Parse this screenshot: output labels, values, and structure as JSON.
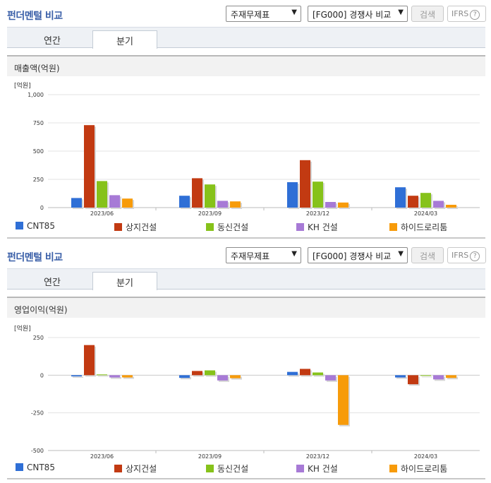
{
  "panels": [
    {
      "title": "펀더멘털 비교",
      "select_statement": "주재무제표",
      "select_peer": "[FG000] 경쟁사 비교",
      "search_label": "검색",
      "ifrs_label": "IFRS",
      "tabs": [
        "연간",
        "분기"
      ],
      "active_tab": 1,
      "metric_title": "매출액(억원)",
      "unit_label": "[억원]"
    },
    {
      "title": "펀더멘털 비교",
      "select_statement": "주재무제표",
      "select_peer": "[FG000] 경쟁사 비교",
      "search_label": "검색",
      "ifrs_label": "IFRS",
      "tabs": [
        "연간",
        "분기"
      ],
      "active_tab": 1,
      "metric_title": "영업이익(억원)",
      "unit_label": "[억원]"
    }
  ],
  "colors": [
    "#2f6fd6",
    "#c23a12",
    "#86c21a",
    "#a77ad6",
    "#f79b0a"
  ],
  "chart_data": [
    {
      "type": "bar",
      "title": "매출액(억원)",
      "ylabel": "[억원]",
      "categories": [
        "2023/06",
        "2023/09",
        "2023/12",
        "2024/03"
      ],
      "ylim": [
        0,
        1000
      ],
      "yticks": [
        0,
        250,
        500,
        750,
        1000
      ],
      "ytick_labels": [
        "0",
        "250",
        "500",
        "750",
        "1,000"
      ],
      "grid": true,
      "legend": "bottom",
      "series": [
        {
          "name": "CNT85",
          "values": [
            85,
            105,
            225,
            180
          ]
        },
        {
          "name": "상지건설",
          "values": [
            730,
            260,
            420,
            105
          ]
        },
        {
          "name": "동신건설",
          "values": [
            235,
            205,
            230,
            130
          ]
        },
        {
          "name": "KH 건설",
          "values": [
            110,
            60,
            50,
            60
          ]
        },
        {
          "name": "하이드로리툼",
          "values": [
            80,
            55,
            45,
            25
          ]
        }
      ]
    },
    {
      "type": "bar",
      "title": "영업이익(억원)",
      "ylabel": "[억원]",
      "categories": [
        "2023/06",
        "2023/09",
        "2023/12",
        "2024/03"
      ],
      "ylim": [
        -500,
        250
      ],
      "yticks": [
        -500,
        -250,
        0,
        250
      ],
      "ytick_labels": [
        "-500",
        "-250",
        "0",
        "250"
      ],
      "grid": true,
      "legend": "bottom",
      "series": [
        {
          "name": "CNT85",
          "values": [
            -8,
            -18,
            22,
            -15
          ]
        },
        {
          "name": "상지건설",
          "values": [
            200,
            28,
            42,
            -60
          ]
        },
        {
          "name": "동신건설",
          "values": [
            5,
            32,
            18,
            0
          ]
        },
        {
          "name": "KH 건설",
          "values": [
            -15,
            -35,
            -35,
            -28
          ]
        },
        {
          "name": "하이드로리툼",
          "values": [
            -15,
            -20,
            -330,
            -18
          ]
        }
      ]
    }
  ]
}
